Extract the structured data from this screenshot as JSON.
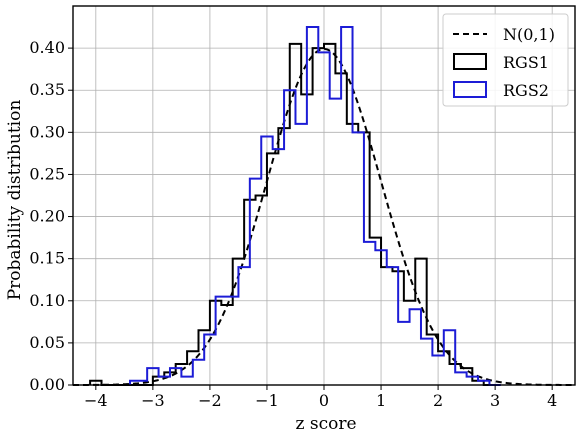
{
  "chart_data": {
    "type": "histogram",
    "xlabel": "z score",
    "ylabel": "Probability distribution",
    "xlim": [
      -4.4,
      4.4
    ],
    "ylim": [
      0,
      0.45
    ],
    "xticks": [
      -4,
      -3,
      -2,
      -1,
      0,
      1,
      2,
      3,
      4
    ],
    "yticks": [
      0.0,
      0.05,
      0.1,
      0.15,
      0.2,
      0.25,
      0.3,
      0.35,
      0.4
    ],
    "ytick_labels": [
      "0.00",
      "0.05",
      "0.10",
      "0.15",
      "0.20",
      "0.25",
      "0.30",
      "0.35",
      "0.40"
    ],
    "grid": true,
    "legend_position": "top-right",
    "series": [
      {
        "name": "N(0,1)",
        "kind": "curve",
        "style": "dashed",
        "color": "#000000",
        "function": "standard normal pdf"
      },
      {
        "name": "RGS1",
        "kind": "step",
        "color": "#000000",
        "edges": [
          -4.1,
          -3.9,
          -3.0,
          -2.8,
          -2.6,
          -2.4,
          -2.2,
          -2.0,
          -1.8,
          -1.6,
          -1.4,
          -1.2,
          -1.0,
          -0.8,
          -0.6,
          -0.4,
          -0.2,
          0.0,
          0.2,
          0.4,
          0.6,
          0.8,
          1.0,
          1.2,
          1.4,
          1.6,
          1.8,
          2.0,
          2.2,
          2.4,
          2.6,
          2.8,
          3.0
        ],
        "values": [
          0.005,
          0.0,
          0.01,
          0.015,
          0.025,
          0.04,
          0.065,
          0.1,
          0.095,
          0.15,
          0.22,
          0.225,
          0.275,
          0.305,
          0.405,
          0.345,
          0.4,
          0.405,
          0.37,
          0.31,
          0.3,
          0.175,
          0.14,
          0.135,
          0.1,
          0.15,
          0.06,
          0.04,
          0.025,
          0.02,
          0.005,
          0.0
        ]
      },
      {
        "name": "RGS2",
        "kind": "step",
        "color": "#1c1cd6",
        "edges": [
          -3.4,
          -3.1,
          -2.9,
          -2.7,
          -2.5,
          -2.3,
          -2.1,
          -1.9,
          -1.7,
          -1.5,
          -1.3,
          -1.1,
          -0.9,
          -0.7,
          -0.5,
          -0.3,
          -0.1,
          0.1,
          0.3,
          0.5,
          0.7,
          0.9,
          1.1,
          1.3,
          1.5,
          1.7,
          1.9,
          2.1,
          2.3,
          2.5,
          2.7,
          2.9,
          3.1
        ],
        "values": [
          0.005,
          0.02,
          0.01,
          0.02,
          0.01,
          0.03,
          0.06,
          0.105,
          0.105,
          0.14,
          0.245,
          0.295,
          0.28,
          0.35,
          0.31,
          0.425,
          0.395,
          0.34,
          0.425,
          0.3,
          0.17,
          0.16,
          0.14,
          0.075,
          0.09,
          0.055,
          0.035,
          0.065,
          0.015,
          0.01,
          0.005,
          0.0
        ]
      }
    ]
  }
}
